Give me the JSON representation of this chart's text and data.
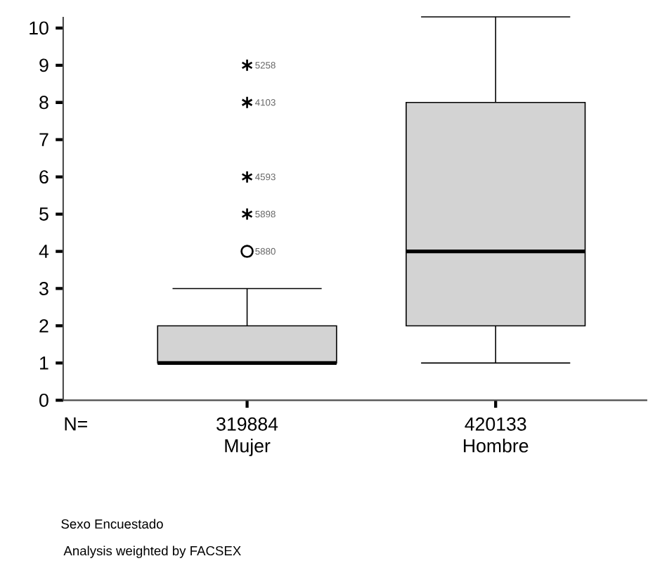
{
  "chart_data": {
    "type": "box",
    "xlabel": "Sexo Encuestado",
    "categories": [
      "Mujer",
      "Hombre"
    ],
    "boxes": [
      {
        "low": 1,
        "q1": 1,
        "median": 1,
        "q3": 2,
        "high": 3,
        "outliers": [
          9,
          8,
          6,
          5,
          4
        ]
      },
      {
        "low": 1,
        "q1": 2,
        "median": 4,
        "q3": 8,
        "high": 10.3
      }
    ],
    "color": "#d3d3d3",
    "ylim": [
      0,
      10.3
    ],
    "yticks": [
      0,
      1,
      2,
      3,
      4,
      5,
      6,
      7,
      8,
      9,
      10
    ],
    "annotations": [
      "N=",
      "319884",
      "420133",
      "5258",
      "4103",
      "4593",
      "5898",
      "5880",
      "Analysis weighted by FACSEX"
    ]
  }
}
